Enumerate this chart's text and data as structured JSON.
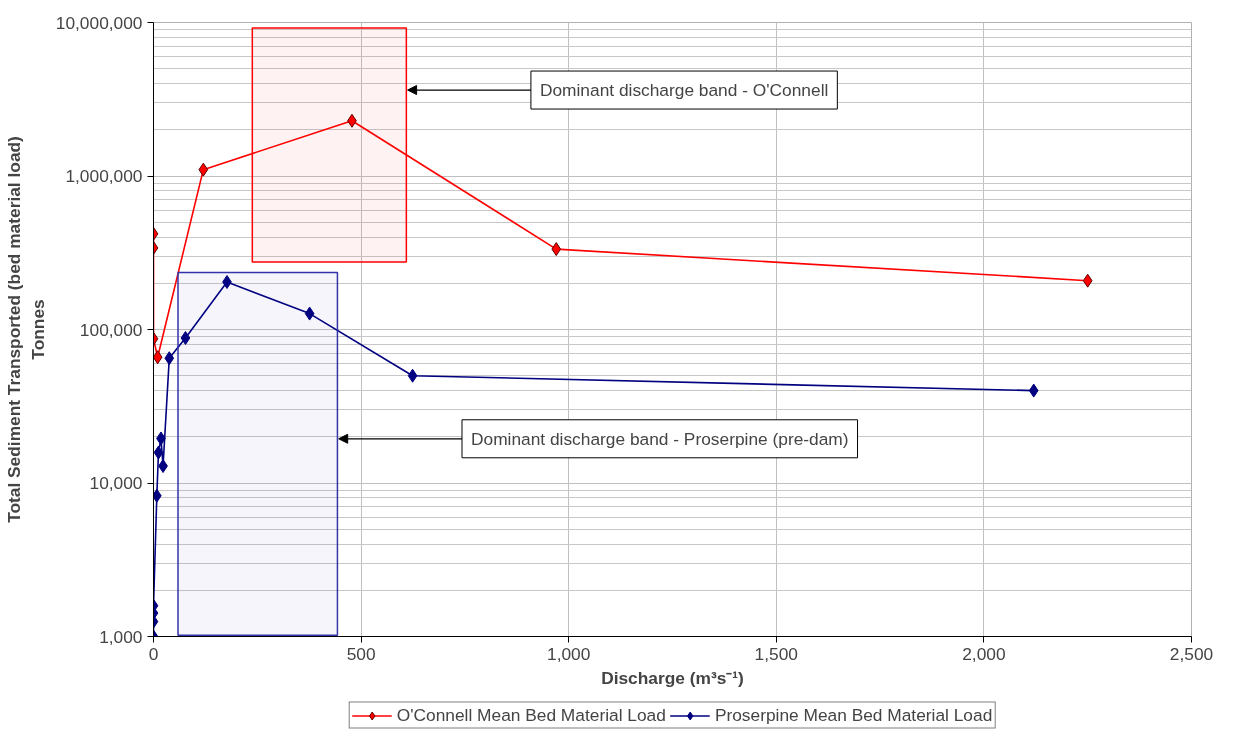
{
  "chart_data": {
    "type": "line",
    "xlabel": "Discharge (m³s⁻¹)",
    "ylabel": "Total Sediment Transported (bed material load)\nTonnes",
    "log": "y",
    "xlim": [
      0,
      2500
    ],
    "xticks": [
      {
        "value": 0,
        "label": "0"
      },
      {
        "value": 500,
        "label": "500"
      },
      {
        "value": 1000,
        "label": "1,000"
      },
      {
        "value": 1500,
        "label": "1,500"
      },
      {
        "value": 2000,
        "label": "2,000"
      },
      {
        "value": 2500,
        "label": "2,500"
      }
    ],
    "ylim": [
      1000,
      10000000
    ],
    "yticks": [
      {
        "value": 1000,
        "label": "1,000"
      },
      {
        "value": 10000,
        "label": "10,000"
      },
      {
        "value": 100000,
        "label": "100,000"
      },
      {
        "value": 1000000,
        "label": "1,000,000"
      },
      {
        "value": 10000000,
        "label": "10,000,000"
      }
    ],
    "grid": true,
    "legend": "bottom",
    "marker": "diamond",
    "line_style": "solid",
    "series": [
      {
        "name": "O'Connell Mean Bed Material Load",
        "color": "#ff0000",
        "x": [
          0,
          0,
          0,
          10,
          120,
          478,
          970,
          2250
        ],
        "values": [
          420000,
          340000,
          87000,
          66000,
          1100000,
          2290000,
          334000,
          208000
        ]
      },
      {
        "name": "Proserpine Mean Bed Material Load",
        "color": "#000080",
        "x": [
          0,
          0,
          0,
          0,
          8,
          12,
          18,
          23,
          38,
          77,
          177,
          376,
          624,
          2120
        ],
        "values": [
          1000,
          1250,
          1420,
          1585,
          8260,
          15800,
          19500,
          12900,
          65000,
          88000,
          204000,
          127000,
          50000,
          40000
        ]
      }
    ],
    "bands": [
      {
        "axis": "x",
        "from": 238,
        "to": 609,
        "label": "Dominant discharge band - O'Connell",
        "color": "#ff0000"
      },
      {
        "axis": "x",
        "from": 59,
        "to": 443,
        "label": "Dominant discharge band - Proserpine (pre-dam)",
        "color": "#3333aa"
      }
    ]
  }
}
